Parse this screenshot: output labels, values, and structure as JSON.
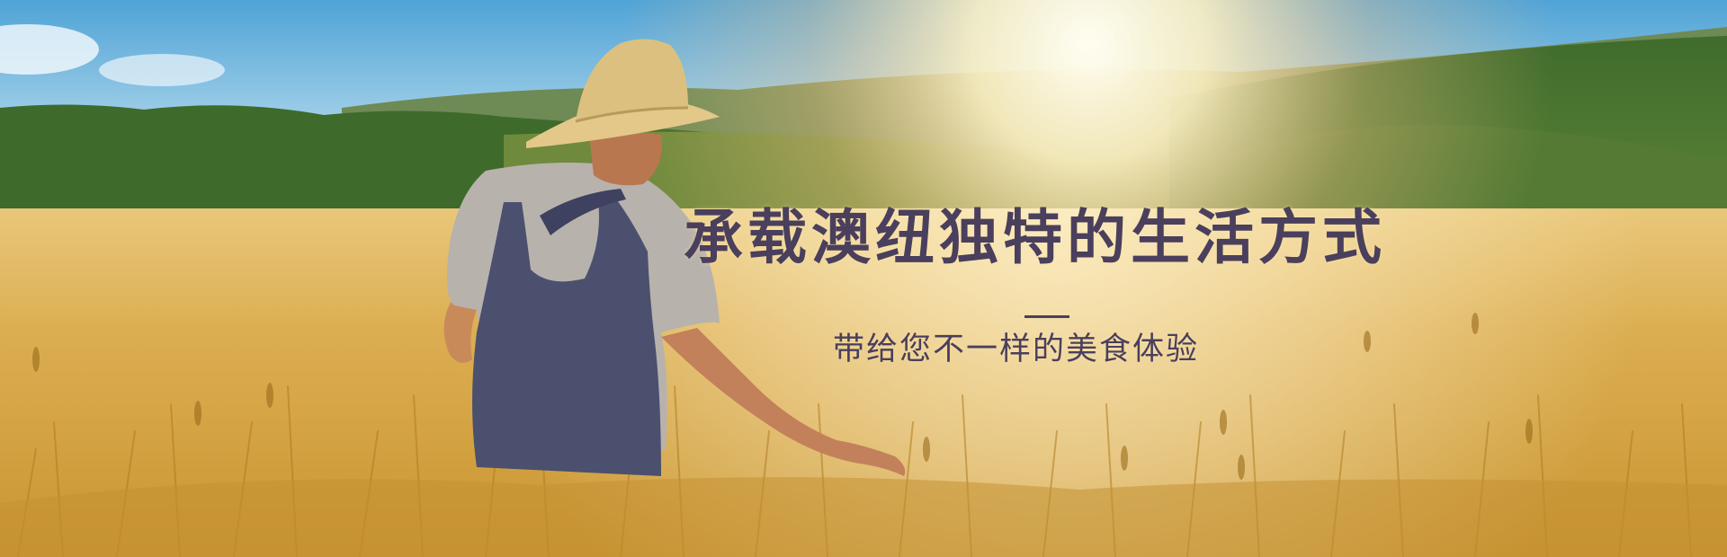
{
  "banner": {
    "headline": "承载澳纽独特的生活方式",
    "subheadline": "带给您不一样的美食体验",
    "background_image": "farmer-in-wheat-field-photo",
    "text_color": "#4a3f5c"
  }
}
